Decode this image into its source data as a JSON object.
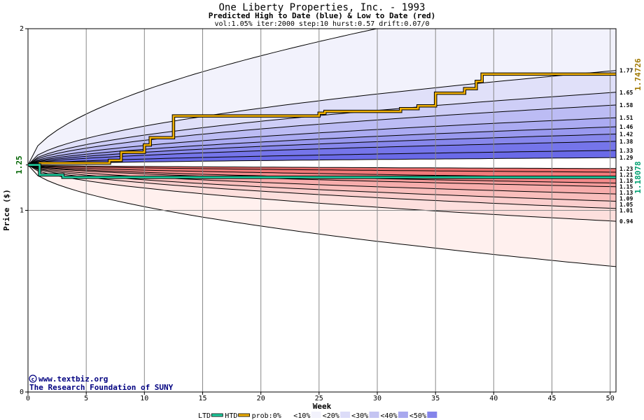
{
  "header": {
    "title": "One Liberty Properties, Inc. - 1993",
    "subtitle": "Predicted High to Date (blue) &  Low to Date (red)",
    "params": "vol:1.05% iter:2000 step:10 hurst:0.57 drift:0.07/0"
  },
  "credits": {
    "site": "www.textbiz.org",
    "org": "The Research Foundation of SUNY"
  },
  "colors": {
    "htd_line": "#f0b000",
    "ltd_line": "#20d0a0",
    "blue_band_light": "#f2f2fc",
    "blue_band_dark": "#6a6ae8",
    "red_band_light": "#fff0ee",
    "red_band_dark": "#f07070",
    "start_label": "#006400",
    "htd_final_label": "#a07800",
    "ltd_final_label": "#00a070"
  },
  "chart_data": {
    "type": "area",
    "title": "One Liberty Properties, Inc. - 1993",
    "xlabel": "Week",
    "ylabel": "Price ($)",
    "xlim": [
      0,
      50.5
    ],
    "ylim": [
      0,
      2
    ],
    "x_ticks": [
      0,
      5,
      10,
      15,
      20,
      25,
      30,
      35,
      40,
      45,
      50
    ],
    "y_ticks": [
      0,
      1,
      2
    ],
    "grid": true,
    "start_price": 1.25,
    "start_label": "1.25",
    "htd_final_value": 1.74726,
    "htd_final_label": "1.74726",
    "ltd_final_value": 1.18078,
    "ltd_final_label": "1.18078",
    "quantile_labels": [
      "1.77",
      "1.65",
      "1.58",
      "1.51",
      "1.46",
      "1.42",
      "1.38",
      "1.33",
      "1.29",
      "1.23",
      "1.21",
      "1.18",
      "1.15",
      "1.13",
      "1.09",
      "1.05",
      "1.01",
      "0.94"
    ],
    "high_bounds": [
      {
        "final": 2.25,
        "bound": true
      },
      {
        "final": 1.77,
        "label": "1.77"
      },
      {
        "final": 1.65,
        "label": "1.65"
      },
      {
        "final": 1.58,
        "label": "1.58"
      },
      {
        "final": 1.51,
        "label": "1.51"
      },
      {
        "final": 1.46,
        "label": "1.46"
      },
      {
        "final": 1.42,
        "label": "1.42"
      },
      {
        "final": 1.38,
        "label": "1.38"
      },
      {
        "final": 1.33,
        "label": "1.33"
      },
      {
        "final": 1.29,
        "label": "1.29"
      }
    ],
    "low_bounds": [
      {
        "final": 1.23,
        "label": "1.23"
      },
      {
        "final": 1.21,
        "label": "1.21"
      },
      {
        "final": 1.18,
        "label": "1.18"
      },
      {
        "final": 1.15,
        "label": "1.15"
      },
      {
        "final": 1.13,
        "label": "1.13"
      },
      {
        "final": 1.09,
        "label": "1.09"
      },
      {
        "final": 1.05,
        "label": "1.05"
      },
      {
        "final": 1.01,
        "label": "1.01"
      },
      {
        "final": 0.94,
        "label": "0.94"
      },
      {
        "final": 0.69,
        "bound": true
      }
    ],
    "series": [
      {
        "name": "HTD",
        "x": [
          0,
          1,
          1,
          7,
          7,
          8,
          8,
          10,
          10,
          10.5,
          10.5,
          12.5,
          12.5,
          25,
          25,
          25.5,
          25.5,
          32,
          32,
          33.5,
          33.5,
          35,
          35,
          37.5,
          37.5,
          38.5,
          38.5,
          39,
          39,
          50.5
        ],
        "y": [
          1.25,
          1.25,
          1.26,
          1.26,
          1.275,
          1.275,
          1.32,
          1.32,
          1.36,
          1.36,
          1.4,
          1.4,
          1.52,
          1.52,
          1.535,
          1.535,
          1.545,
          1.545,
          1.56,
          1.56,
          1.575,
          1.575,
          1.645,
          1.645,
          1.67,
          1.67,
          1.71,
          1.71,
          1.75,
          1.75
        ]
      },
      {
        "name": "LTD",
        "x": [
          0,
          1,
          1,
          3,
          3,
          50.5
        ],
        "y": [
          1.25,
          1.25,
          1.195,
          1.195,
          1.182,
          1.182
        ]
      }
    ],
    "legend": {
      "placement": "bottom",
      "items": [
        "LTD",
        "HTD",
        "prob:0%",
        "<10%",
        "<20%",
        "<30%",
        "<40%",
        "<50%"
      ],
      "colors": [
        "#20d0a0",
        "#f0b000",
        "#ffffff",
        "#f2f2fc",
        "#dcdcf8",
        "#c4c4f2",
        "#a8a8ee",
        "#8484ea"
      ]
    }
  }
}
